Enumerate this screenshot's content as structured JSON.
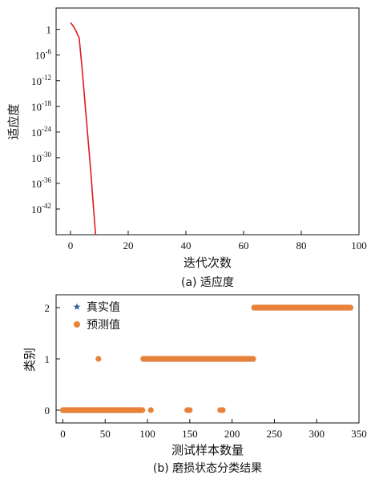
{
  "chart_data": [
    {
      "type": "line",
      "y_scale": "log",
      "xlabel": "迭代次数",
      "ylabel": "适应度",
      "caption": "(a) 适应度",
      "xlim": [
        -5,
        100
      ],
      "ylim": [
        1e-48,
        100000.0
      ],
      "x_ticks": [
        0,
        20,
        40,
        60,
        80,
        100
      ],
      "x_tick_labels": [
        "0",
        "20",
        "40",
        "60",
        "80",
        "100"
      ],
      "y_ticks": [
        1,
        1e-06,
        1e-12,
        1e-18,
        1e-24,
        1e-30,
        1e-36,
        1e-42
      ],
      "y_tick_labels": [
        {
          "base": "1",
          "exp": ""
        },
        {
          "base": "10",
          "exp": "-6"
        },
        {
          "base": "10",
          "exp": "-12"
        },
        {
          "base": "10",
          "exp": "-18"
        },
        {
          "base": "10",
          "exp": "-24"
        },
        {
          "base": "10",
          "exp": "-30"
        },
        {
          "base": "10",
          "exp": "-36"
        },
        {
          "base": "10",
          "exp": "-42"
        }
      ],
      "grid": false,
      "line_color": "#e0191e",
      "series": [
        {
          "x": [
            0,
            1,
            2,
            3,
            4,
            5,
            6,
            7,
            8,
            8.7
          ],
          "log10_y": [
            1.6,
            0.7,
            -0.5,
            -2.0,
            -9,
            -17,
            -25,
            -33,
            -42,
            -48
          ]
        }
      ]
    },
    {
      "type": "scatter",
      "xlabel": "测试样本数量",
      "ylabel": "类别",
      "caption": "(b) 磨损状态分类结果",
      "xlim": [
        -8,
        350
      ],
      "ylim": [
        -0.25,
        2.25
      ],
      "x_ticks": [
        0,
        50,
        100,
        150,
        200,
        250,
        300,
        350
      ],
      "x_tick_labels": [
        "0",
        "50",
        "100",
        "150",
        "200",
        "250",
        "300",
        "350"
      ],
      "y_ticks": [
        0,
        1,
        2
      ],
      "y_tick_labels": [
        "0",
        "1",
        "2"
      ],
      "grid": false,
      "legend_position": "top-left",
      "series": [
        {
          "name": "真实值",
          "marker": "star",
          "color": "#2e5f94",
          "segments": [
            {
              "class": 0,
              "from": 0,
              "to": 95
            },
            {
              "class": 1,
              "from": 96,
              "to": 225
            },
            {
              "class": 2,
              "from": 226,
              "to": 340
            }
          ]
        },
        {
          "name": "预测值",
          "marker": "circle",
          "color": "#e8823a",
          "segments": [
            {
              "class": 0,
              "from": 0,
              "to": 94
            },
            {
              "class": 1,
              "from": 95,
              "to": 225
            },
            {
              "class": 2,
              "from": 226,
              "to": 340
            }
          ],
          "extra_points": [
            {
              "x": 42,
              "y": 1
            },
            {
              "x": 104,
              "y": 0
            },
            {
              "x": 147,
              "y": 0
            },
            {
              "x": 150,
              "y": 0
            },
            {
              "x": 186,
              "y": 0
            },
            {
              "x": 189,
              "y": 0
            }
          ]
        }
      ]
    }
  ]
}
